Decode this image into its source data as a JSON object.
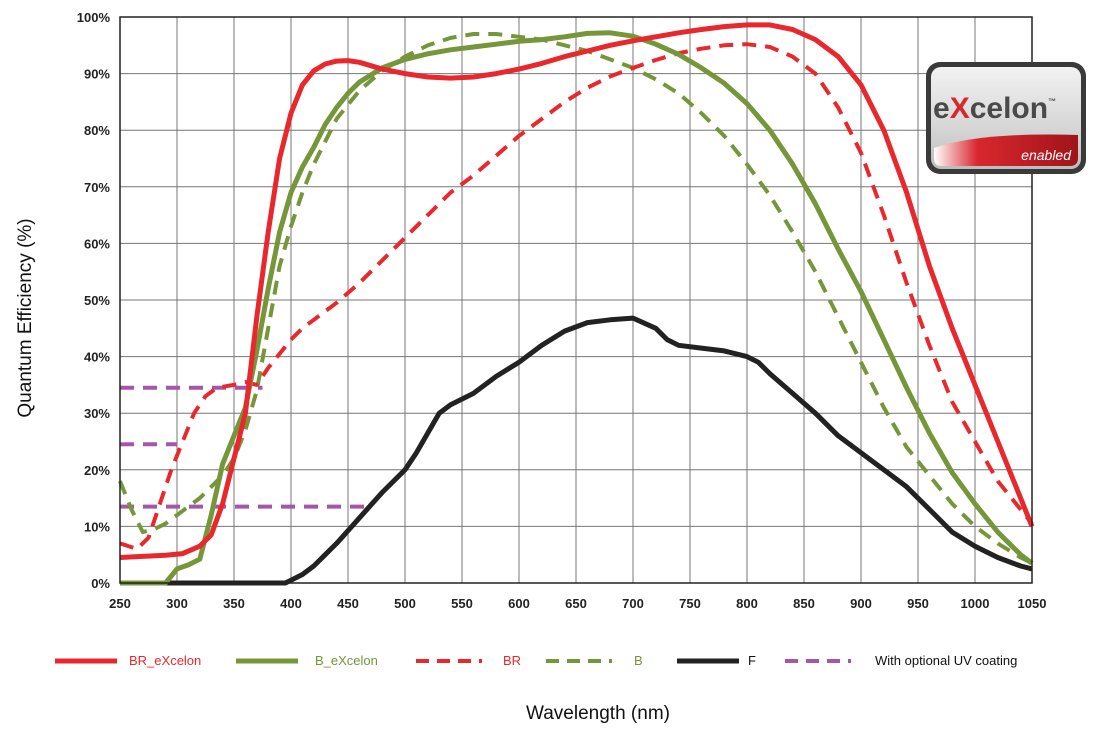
{
  "chart_data": {
    "type": "line",
    "xlabel": "Wavelength (nm)",
    "ylabel": "Quantum Efficiency (%)",
    "xlim": [
      250,
      1050
    ],
    "ylim": [
      0,
      100
    ],
    "grid": true,
    "legend_position": "bottom",
    "x_ticks": [
      "250",
      "300",
      "350",
      "400",
      "450",
      "500",
      "550",
      "600",
      "650",
      "700",
      "750",
      "800",
      "850",
      "900",
      "950",
      "1000",
      "1050"
    ],
    "y_ticks": [
      "0%",
      "10%",
      "20%",
      "30%",
      "40%",
      "50%",
      "60%",
      "70%",
      "80%",
      "90%",
      "100%"
    ],
    "series": [
      {
        "name": "BR_eXcelon",
        "color": "#e8282c",
        "style": "solid",
        "points": [
          [
            250,
            4.5
          ],
          [
            270,
            4.7
          ],
          [
            290,
            4.9
          ],
          [
            305,
            5.2
          ],
          [
            320,
            6.5
          ],
          [
            330,
            8.5
          ],
          [
            340,
            14
          ],
          [
            350,
            22
          ],
          [
            360,
            30
          ],
          [
            370,
            47
          ],
          [
            380,
            62
          ],
          [
            390,
            75
          ],
          [
            400,
            83
          ],
          [
            410,
            88
          ],
          [
            420,
            90.5
          ],
          [
            430,
            91.7
          ],
          [
            440,
            92.2
          ],
          [
            450,
            92.3
          ],
          [
            460,
            92
          ],
          [
            470,
            91.4
          ],
          [
            480,
            90.8
          ],
          [
            500,
            90
          ],
          [
            520,
            89.4
          ],
          [
            540,
            89.2
          ],
          [
            560,
            89.4
          ],
          [
            580,
            90
          ],
          [
            600,
            90.8
          ],
          [
            620,
            91.8
          ],
          [
            640,
            93
          ],
          [
            660,
            94
          ],
          [
            680,
            95
          ],
          [
            700,
            95.8
          ],
          [
            720,
            96.5
          ],
          [
            740,
            97.2
          ],
          [
            760,
            97.8
          ],
          [
            780,
            98.3
          ],
          [
            800,
            98.6
          ],
          [
            820,
            98.6
          ],
          [
            840,
            97.8
          ],
          [
            860,
            96
          ],
          [
            880,
            93
          ],
          [
            900,
            88
          ],
          [
            920,
            80
          ],
          [
            940,
            69
          ],
          [
            960,
            56
          ],
          [
            980,
            45
          ],
          [
            1000,
            35
          ],
          [
            1020,
            25
          ],
          [
            1040,
            15
          ],
          [
            1050,
            10
          ]
        ]
      },
      {
        "name": "B_eXcelon",
        "color": "#76963a",
        "style": "solid",
        "points": [
          [
            250,
            0
          ],
          [
            280,
            0
          ],
          [
            290,
            0
          ],
          [
            300,
            2.5
          ],
          [
            310,
            3.2
          ],
          [
            320,
            4.2
          ],
          [
            330,
            12
          ],
          [
            340,
            21
          ],
          [
            350,
            26
          ],
          [
            360,
            31
          ],
          [
            370,
            41
          ],
          [
            380,
            52
          ],
          [
            390,
            62
          ],
          [
            400,
            69
          ],
          [
            410,
            73.5
          ],
          [
            420,
            77
          ],
          [
            430,
            81
          ],
          [
            440,
            84
          ],
          [
            450,
            86.5
          ],
          [
            460,
            88.5
          ],
          [
            480,
            91
          ],
          [
            500,
            92.5
          ],
          [
            520,
            93.5
          ],
          [
            540,
            94.2
          ],
          [
            560,
            94.7
          ],
          [
            580,
            95.2
          ],
          [
            600,
            95.7
          ],
          [
            620,
            96
          ],
          [
            640,
            96.5
          ],
          [
            660,
            97.1
          ],
          [
            680,
            97.2
          ],
          [
            700,
            96.6
          ],
          [
            720,
            95.2
          ],
          [
            740,
            93.4
          ],
          [
            760,
            91
          ],
          [
            780,
            88.3
          ],
          [
            800,
            84.7
          ],
          [
            820,
            80
          ],
          [
            840,
            74
          ],
          [
            860,
            67
          ],
          [
            880,
            59
          ],
          [
            900,
            51.5
          ],
          [
            920,
            43
          ],
          [
            940,
            34.5
          ],
          [
            960,
            26.5
          ],
          [
            980,
            19.5
          ],
          [
            1000,
            14
          ],
          [
            1020,
            9
          ],
          [
            1040,
            5
          ],
          [
            1050,
            3.5
          ]
        ]
      },
      {
        "name": "BR",
        "color": "#e8282c",
        "style": "dashed",
        "points": [
          [
            250,
            7
          ],
          [
            265,
            6
          ],
          [
            275,
            8
          ],
          [
            285,
            14
          ],
          [
            295,
            20
          ],
          [
            305,
            25
          ],
          [
            315,
            30
          ],
          [
            325,
            33
          ],
          [
            335,
            34.5
          ],
          [
            350,
            35
          ],
          [
            360,
            35.5
          ],
          [
            370,
            35
          ],
          [
            380,
            38
          ],
          [
            390,
            40.5
          ],
          [
            400,
            43
          ],
          [
            410,
            45
          ],
          [
            420,
            46.5
          ],
          [
            440,
            49.5
          ],
          [
            460,
            53
          ],
          [
            480,
            57
          ],
          [
            500,
            61
          ],
          [
            520,
            65
          ],
          [
            540,
            69
          ],
          [
            560,
            72
          ],
          [
            580,
            75.5
          ],
          [
            600,
            79
          ],
          [
            620,
            82
          ],
          [
            640,
            85
          ],
          [
            660,
            87.5
          ],
          [
            680,
            89.5
          ],
          [
            700,
            91
          ],
          [
            720,
            92.4
          ],
          [
            740,
            93.6
          ],
          [
            760,
            94.4
          ],
          [
            780,
            95
          ],
          [
            800,
            95.2
          ],
          [
            820,
            94.7
          ],
          [
            840,
            93
          ],
          [
            860,
            90
          ],
          [
            880,
            84
          ],
          [
            900,
            76
          ],
          [
            920,
            65
          ],
          [
            940,
            53
          ],
          [
            960,
            42
          ],
          [
            980,
            32
          ],
          [
            1000,
            25
          ],
          [
            1020,
            18
          ],
          [
            1040,
            13
          ],
          [
            1050,
            10.5
          ]
        ]
      },
      {
        "name": "B",
        "color": "#76963a",
        "style": "dashed",
        "points": [
          [
            250,
            18
          ],
          [
            260,
            13
          ],
          [
            270,
            9
          ],
          [
            280,
            9.5
          ],
          [
            290,
            10.5
          ],
          [
            300,
            12
          ],
          [
            310,
            13.5
          ],
          [
            320,
            15
          ],
          [
            330,
            17
          ],
          [
            340,
            19
          ],
          [
            350,
            22
          ],
          [
            360,
            27
          ],
          [
            370,
            34
          ],
          [
            380,
            45
          ],
          [
            390,
            56
          ],
          [
            400,
            63
          ],
          [
            410,
            69
          ],
          [
            420,
            74
          ],
          [
            440,
            82
          ],
          [
            460,
            87
          ],
          [
            480,
            90.5
          ],
          [
            500,
            93
          ],
          [
            520,
            95
          ],
          [
            540,
            96.3
          ],
          [
            560,
            97
          ],
          [
            580,
            97
          ],
          [
            600,
            96.5
          ],
          [
            620,
            96
          ],
          [
            640,
            95
          ],
          [
            660,
            94
          ],
          [
            680,
            92.5
          ],
          [
            700,
            91
          ],
          [
            720,
            89
          ],
          [
            740,
            86.5
          ],
          [
            760,
            83
          ],
          [
            780,
            79
          ],
          [
            800,
            74
          ],
          [
            820,
            68.5
          ],
          [
            840,
            62
          ],
          [
            860,
            55
          ],
          [
            880,
            47
          ],
          [
            900,
            39
          ],
          [
            920,
            31
          ],
          [
            940,
            24
          ],
          [
            960,
            19
          ],
          [
            980,
            14
          ],
          [
            1000,
            10
          ],
          [
            1020,
            7
          ],
          [
            1040,
            4.5
          ],
          [
            1050,
            3.5
          ]
        ]
      },
      {
        "name": "F",
        "color": "#222222",
        "style": "solid",
        "points": [
          [
            250,
            0
          ],
          [
            380,
            0
          ],
          [
            395,
            0
          ],
          [
            400,
            0.5
          ],
          [
            410,
            1.5
          ],
          [
            420,
            3
          ],
          [
            430,
            5
          ],
          [
            440,
            7
          ],
          [
            460,
            11.5
          ],
          [
            480,
            16
          ],
          [
            500,
            20
          ],
          [
            510,
            23
          ],
          [
            520,
            26.5
          ],
          [
            530,
            30
          ],
          [
            540,
            31.5
          ],
          [
            560,
            33.5
          ],
          [
            580,
            36.5
          ],
          [
            600,
            39
          ],
          [
            620,
            42
          ],
          [
            640,
            44.5
          ],
          [
            660,
            46
          ],
          [
            680,
            46.5
          ],
          [
            700,
            46.8
          ],
          [
            720,
            45
          ],
          [
            730,
            43
          ],
          [
            740,
            42
          ],
          [
            760,
            41.5
          ],
          [
            780,
            41
          ],
          [
            800,
            40
          ],
          [
            810,
            39
          ],
          [
            820,
            37
          ],
          [
            840,
            33.5
          ],
          [
            860,
            30
          ],
          [
            880,
            26
          ],
          [
            900,
            23
          ],
          [
            920,
            20
          ],
          [
            940,
            17
          ],
          [
            960,
            13
          ],
          [
            980,
            9
          ],
          [
            1000,
            6.5
          ],
          [
            1020,
            4.5
          ],
          [
            1040,
            3
          ],
          [
            1050,
            2.5
          ]
        ]
      },
      {
        "name": "With optional UV coating",
        "color": "#a556a8",
        "style": "dashed",
        "segments": [
          [
            [
              250,
              34.5
            ],
            [
              375,
              34.5
            ]
          ],
          [
            [
              250,
              24.5
            ],
            [
              300,
              24.5
            ]
          ],
          [
            [
              250,
              13.5
            ],
            [
              470,
              13.5
            ]
          ]
        ]
      }
    ]
  },
  "logo": {
    "main_prefix": "e",
    "main_x": "X",
    "main_suffix": "celon",
    "trademark": "™",
    "sub": "enabled"
  }
}
